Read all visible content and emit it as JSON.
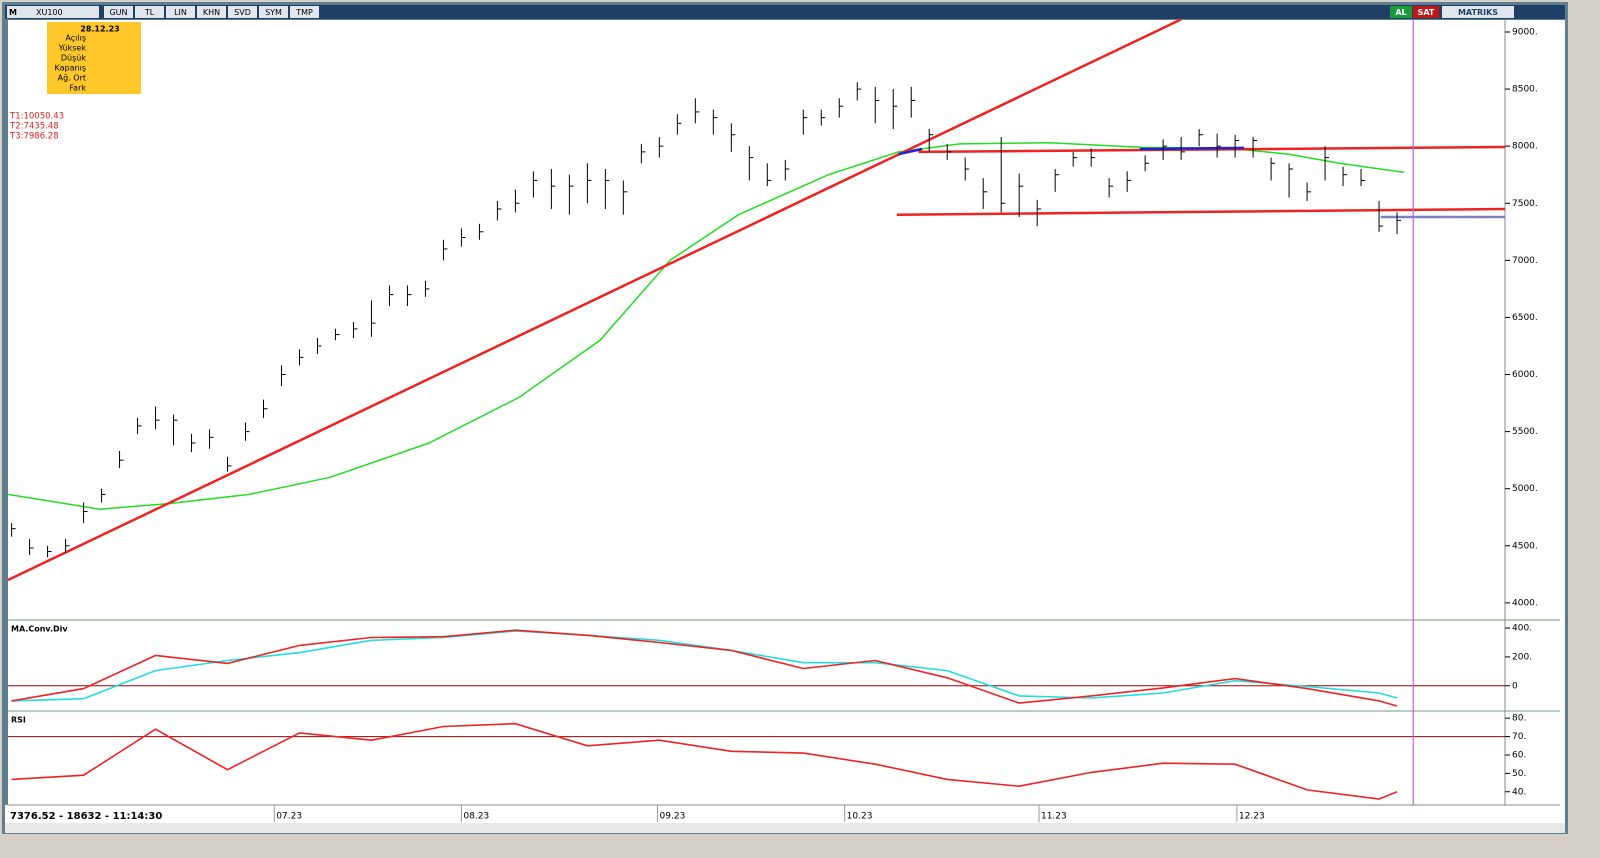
{
  "toolbar": {
    "menu": "M",
    "symbol": "XU100",
    "buttons": [
      "GUN",
      "TL",
      "LIN",
      "KHN",
      "SVD",
      "SYM",
      "TMP"
    ],
    "buy": "AL",
    "sell": "SAT",
    "brand": "MATRIKS"
  },
  "info_box": {
    "date": "28.12.23",
    "fields": [
      "Açılış",
      "Yüksek",
      "Düşük",
      "Kapanış",
      "Ağ. Ort",
      "Fark"
    ]
  },
  "status": "7376.52 - 18632 - 11:14:30",
  "cursor": {
    "x": 77.9,
    "color": "#c060d0"
  },
  "chart_data": [
    {
      "type": "ohlc",
      "xlim": [
        -0.2,
        83
      ],
      "ylim": [
        3850,
        9105
      ],
      "yticks": [
        {
          "value": 4000,
          "label": "4000."
        },
        {
          "value": 4500,
          "label": "4500."
        },
        {
          "value": 5000,
          "label": "5000."
        },
        {
          "value": 5500,
          "label": "5500."
        },
        {
          "value": 6000,
          "label": "6000."
        },
        {
          "value": 6500,
          "label": "6500."
        },
        {
          "value": 7000,
          "label": "7000."
        },
        {
          "value": 7500,
          "label": "7500."
        },
        {
          "value": 8000,
          "label": "8000."
        },
        {
          "value": 8500,
          "label": "8500."
        },
        {
          "value": 9000,
          "label": "9000."
        }
      ],
      "annotations": [
        "T1:10050.43",
        "T2:7435.48",
        "T3:7986.28"
      ],
      "color": "#000000",
      "high": [
        4700,
        4560,
        4500,
        4560,
        4880,
        5000,
        5330,
        5620,
        5720,
        5650,
        5480,
        5520,
        5280,
        5580,
        5780,
        6080,
        6220,
        6320,
        6400,
        6460,
        6650,
        6780,
        6780,
        6820,
        7180,
        7280,
        7320,
        7520,
        7620,
        7780,
        7800,
        7750,
        7850,
        7800,
        7700,
        8020,
        8080,
        8280,
        8420,
        8320,
        8200,
        8000,
        7850,
        7880,
        8320,
        8320,
        8420,
        8560,
        8520,
        8500,
        8520,
        8150,
        8020,
        7900,
        7720,
        8080,
        7760,
        7530,
        7800,
        7950,
        7980,
        7720,
        7780,
        7920,
        8060,
        8080,
        8150,
        8110,
        8100,
        8080,
        7900,
        7850,
        7680,
        8000,
        7820,
        7800,
        7520,
        7420
      ],
      "low": [
        4580,
        4420,
        4400,
        4440,
        4700,
        4880,
        5180,
        5480,
        5520,
        5380,
        5320,
        5350,
        5150,
        5420,
        5620,
        5900,
        6080,
        6180,
        6300,
        6320,
        6330,
        6600,
        6600,
        6680,
        7000,
        7120,
        7180,
        7350,
        7420,
        7550,
        7450,
        7400,
        7500,
        7450,
        7400,
        7850,
        7900,
        8100,
        8200,
        8100,
        7950,
        7700,
        7650,
        7700,
        8100,
        8180,
        8250,
        8400,
        8200,
        8150,
        8250,
        7950,
        7880,
        7700,
        7450,
        7420,
        7380,
        7300,
        7600,
        7820,
        7820,
        7550,
        7600,
        7780,
        7880,
        7880,
        8000,
        7900,
        7900,
        7900,
        7700,
        7550,
        7520,
        7700,
        7650,
        7650,
        7250,
        7230
      ],
      "close": [
        4650,
        4480,
        4450,
        4500,
        4800,
        4950,
        5250,
        5550,
        5600,
        5600,
        5400,
        5450,
        5200,
        5500,
        5700,
        6000,
        6150,
        6250,
        6350,
        6400,
        6450,
        6700,
        6700,
        6750,
        7100,
        7200,
        7250,
        7450,
        7500,
        7700,
        7650,
        7650,
        7700,
        7700,
        7600,
        7950,
        8000,
        8200,
        8300,
        8250,
        8100,
        7900,
        7700,
        7800,
        8250,
        8250,
        8350,
        8500,
        8400,
        8350,
        8400,
        8100,
        7950,
        7800,
        7600,
        7500,
        7650,
        7450,
        7750,
        7900,
        7900,
        7650,
        7700,
        7850,
        8000,
        7950,
        8100,
        8000,
        8050,
        8050,
        7850,
        7800,
        7600,
        7900,
        7750,
        7700,
        7300,
        7350
      ],
      "lines": [
        {
          "color": "#22dd22",
          "x": [
            -0.2,
            4.9,
            8.8,
            13.2,
            17.7,
            23.2,
            28.2,
            32.7,
            36.6,
            40.4,
            45.4,
            49.3,
            52.7,
            57.7,
            62.7,
            67.7,
            71,
            73.8,
            77.4
          ],
          "y": [
            4950,
            4820,
            4870,
            4950,
            5100,
            5400,
            5800,
            6300,
            7000,
            7400,
            7750,
            7950,
            8020,
            8030,
            7990,
            7980,
            7930,
            7850,
            7770
          ]
        },
        {
          "color": "#ee2222",
          "x": [
            -0.2,
            65
          ],
          "y": [
            4200,
            9110
          ]
        },
        {
          "color": "#ee2222",
          "x": [
            50.4,
            83
          ],
          "y": [
            7950,
            7993
          ]
        },
        {
          "color": "#ee2222",
          "x": [
            49.2,
            83
          ],
          "y": [
            7400,
            7450
          ]
        },
        {
          "color": "#2222cc",
          "x": [
            49.3,
            50.6
          ],
          "y": [
            7930,
            7975
          ]
        },
        {
          "color": "#2222cc",
          "x": [
            62.7,
            68.5
          ],
          "y": [
            7975,
            7985
          ]
        },
        {
          "color": "#8080c0",
          "x": [
            76.1,
            83
          ],
          "y": [
            7380,
            7380
          ]
        }
      ]
    },
    {
      "type": "line",
      "title": "MA.Conv.Div",
      "xlim": [
        -0.2,
        83
      ],
      "ylim": [
        -175,
        456
      ],
      "yticks": [
        {
          "value": 0,
          "label": "0"
        },
        {
          "value": 200,
          "label": "200."
        },
        {
          "value": 400,
          "label": "400."
        }
      ],
      "reference_lines": [
        0
      ],
      "reference_color": "#a00000",
      "x": [
        0,
        4,
        8,
        12,
        16,
        20,
        24,
        28,
        32,
        36,
        40,
        44,
        48,
        52,
        56,
        60,
        64,
        68,
        72,
        76,
        77
      ],
      "series": [
        {
          "color": "#ee2222",
          "values": [
            -105,
            -20,
            210,
            155,
            280,
            335,
            340,
            385,
            350,
            300,
            245,
            120,
            175,
            55,
            -120,
            -70,
            -15,
            50,
            -20,
            -105,
            -140
          ]
        },
        {
          "color": "#22dddd",
          "values": [
            -105,
            -90,
            105,
            175,
            230,
            315,
            335,
            380,
            350,
            315,
            245,
            160,
            160,
            105,
            -70,
            -85,
            -50,
            35,
            -5,
            -50,
            -85
          ]
        }
      ]
    },
    {
      "type": "line",
      "title": "RSI",
      "xlim": [
        -0.2,
        83
      ],
      "ylim": [
        32.8,
        83.9
      ],
      "yticks": [
        {
          "value": 40,
          "label": "40."
        },
        {
          "value": 50,
          "label": "50."
        },
        {
          "value": 60,
          "label": "60."
        },
        {
          "value": 70,
          "label": "70."
        },
        {
          "value": 80,
          "label": "80."
        }
      ],
      "reference_lines": [
        70
      ],
      "reference_color": "#a00000",
      "xticks": [
        {
          "value": 14.6,
          "label": "07.23"
        },
        {
          "value": 25.0,
          "label": "08.23"
        },
        {
          "value": 35.9,
          "label": "09.23"
        },
        {
          "value": 46.3,
          "label": "10.23"
        },
        {
          "value": 57.1,
          "label": "11.23"
        },
        {
          "value": 68.1,
          "label": "12.23"
        }
      ],
      "x": [
        0,
        4,
        8,
        12,
        16,
        20,
        24,
        28,
        32,
        36,
        40,
        44,
        48,
        52,
        56,
        60,
        64,
        68,
        72,
        76,
        77
      ],
      "series": [
        {
          "color": "#ee2222",
          "values": [
            46.7,
            49,
            74,
            52,
            72,
            68,
            75.5,
            77,
            65,
            68,
            62,
            61,
            55,
            46.7,
            43,
            50.5,
            55.5,
            55,
            41,
            36,
            40
          ]
        }
      ]
    }
  ]
}
